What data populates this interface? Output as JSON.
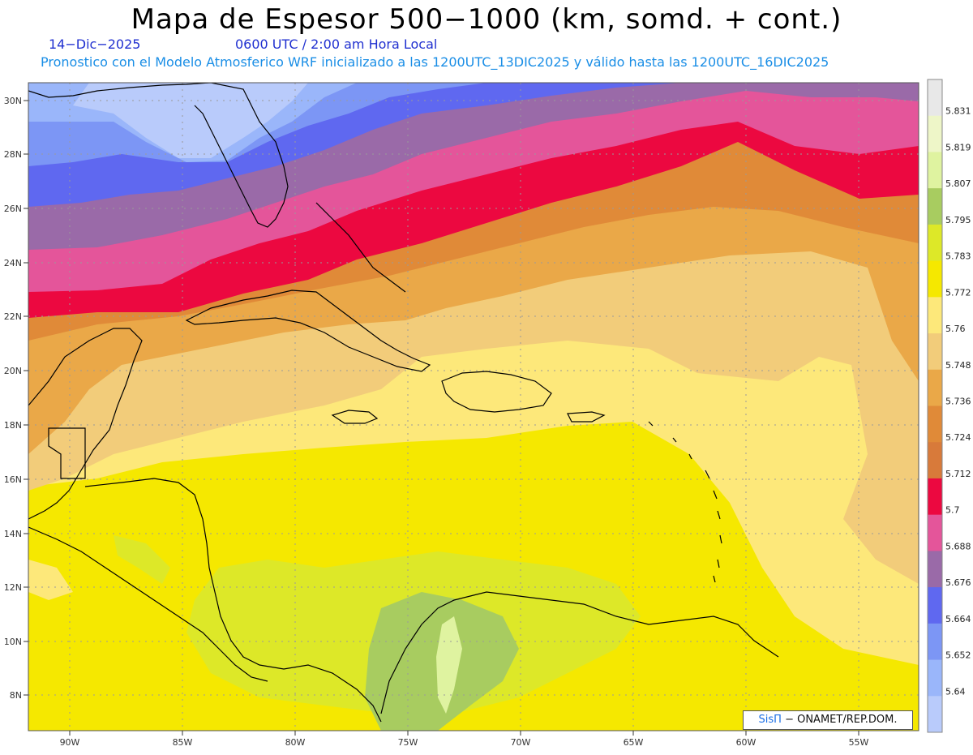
{
  "header": {
    "title": "Mapa de Espesor 500−1000 (km, somd. + cont.)",
    "date": "14−Dic−2025",
    "time": "0600 UTC / 2:00 am Hora Local",
    "subtitle": "Pronostico con el Modelo Atmosferico WRF inicializado a las 1200UTC_13DIC2025 y válido hasta las  1200UTC_16DIC2025"
  },
  "axes": {
    "lat_labels": [
      "30N",
      "28N",
      "26N",
      "24N",
      "22N",
      "20N",
      "18N",
      "16N",
      "14N",
      "12N",
      "10N",
      "8N"
    ],
    "lon_labels": [
      "90W",
      "85W",
      "80W",
      "75W",
      "70W",
      "65W",
      "60W",
      "55W"
    ]
  },
  "colorbar": {
    "labels": [
      "5.831",
      "5.819",
      "5.807",
      "5.795",
      "5.783",
      "5.772",
      "5.76",
      "5.748",
      "5.736",
      "5.724",
      "5.712",
      "5.7",
      "5.688",
      "5.676",
      "5.664",
      "5.652",
      "5.64"
    ],
    "colors": [
      "#e8e8e8",
      "#eef6c8",
      "#dff3a0",
      "#a8cc60",
      "#dde828",
      "#f5e800",
      "#fde87a",
      "#f2cc7a",
      "#eaa848",
      "#e08a38",
      "#d87a3a",
      "#ec0840",
      "#e4559a",
      "#9a6aa8",
      "#5f68f0",
      "#7c96f5",
      "#9ab6fa",
      "#b9cbfb"
    ]
  },
  "credit": {
    "sis": "SisΠ",
    "rest": " − ONAMET/REP.DOM."
  }
}
